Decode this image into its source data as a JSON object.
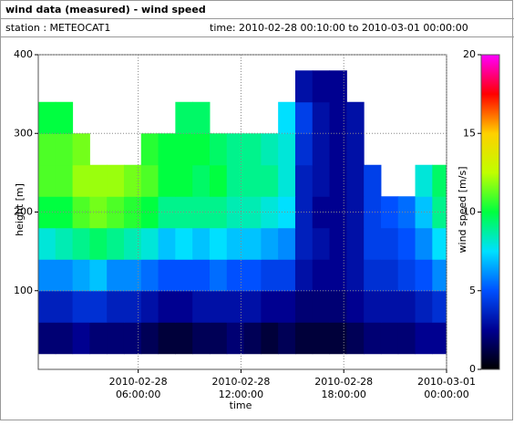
{
  "chart_data": {
    "type": "heatmap",
    "title": "wind data (measured) - wind speed",
    "station": "station : METEOCAT1",
    "time_range": "time: 2010-02-28 00:10:00 to 2010-03-01 00:00:00",
    "x_label": "time",
    "y_label": "height [m]",
    "colorbar_label": "wind speed [m/s]",
    "x": [
      "2010-02-28 00:10:00",
      "2010-02-28 01:10:00",
      "2010-02-28 02:10:00",
      "2010-02-28 03:10:00",
      "2010-02-28 04:10:00",
      "2010-02-28 05:10:00",
      "2010-02-28 06:10:00",
      "2010-02-28 07:10:00",
      "2010-02-28 08:10:00",
      "2010-02-28 09:10:00",
      "2010-02-28 10:10:00",
      "2010-02-28 11:10:00",
      "2010-02-28 12:10:00",
      "2010-02-28 13:10:00",
      "2010-02-28 14:10:00",
      "2010-02-28 15:10:00",
      "2010-02-28 16:10:00",
      "2010-02-28 17:10:00",
      "2010-02-28 18:10:00",
      "2010-02-28 19:10:00",
      "2010-02-28 20:10:00",
      "2010-02-28 21:10:00",
      "2010-02-28 22:10:00",
      "2010-02-28 23:10:00"
    ],
    "y": [
      40,
      80,
      120,
      160,
      200,
      240,
      280,
      320,
      360
    ],
    "z": [
      [
        2,
        2,
        2.5,
        2,
        2,
        2,
        1.5,
        1,
        1,
        1.5,
        1.5,
        2,
        1.5,
        1,
        1.5,
        1,
        1,
        1,
        1.5,
        2,
        2,
        2,
        2.5,
        2.5
      ],
      [
        3.5,
        3.5,
        4,
        4,
        3.5,
        3.5,
        3,
        2.5,
        2.5,
        3,
        3,
        3,
        3,
        2.5,
        2.5,
        2,
        2,
        2,
        2.5,
        3,
        3,
        3,
        3.5,
        4
      ],
      [
        6,
        6,
        6.5,
        7,
        6,
        6,
        5.5,
        5,
        5,
        5,
        5.5,
        5,
        5,
        4.5,
        4.5,
        3,
        2.5,
        2.5,
        3,
        4,
        4,
        4.5,
        5,
        6
      ],
      [
        8,
        8.5,
        9,
        9.5,
        9,
        8.5,
        8,
        7,
        7.5,
        7,
        7.5,
        7,
        7,
        6.5,
        6,
        3.5,
        3,
        2.5,
        3,
        4.5,
        4.5,
        5,
        6,
        7.5
      ],
      [
        10,
        10,
        11,
        11.5,
        11,
        10.5,
        10,
        9,
        9,
        9,
        9,
        8.5,
        8.5,
        8,
        7.5,
        3.5,
        2.5,
        2.5,
        3,
        4.5,
        5,
        5.5,
        7,
        9
      ],
      [
        11,
        11,
        12,
        12,
        12,
        11.5,
        11,
        10,
        10,
        9.5,
        10,
        9,
        9,
        9,
        8,
        3.5,
        3,
        2.5,
        3,
        4.5,
        null,
        null,
        8,
        9.5
      ],
      [
        11,
        11,
        11.5,
        null,
        null,
        null,
        10.5,
        10,
        10,
        10,
        9.5,
        9,
        9,
        8.5,
        8,
        4,
        3,
        2.5,
        3,
        null,
        null,
        null,
        null,
        null
      ],
      [
        10,
        10,
        null,
        null,
        null,
        null,
        null,
        null,
        9.5,
        9.5,
        null,
        null,
        null,
        null,
        7.5,
        4.5,
        3,
        2.5,
        3,
        null,
        null,
        null,
        null,
        null
      ],
      [
        null,
        null,
        null,
        null,
        null,
        null,
        null,
        null,
        null,
        null,
        null,
        null,
        null,
        null,
        null,
        3,
        2.5,
        2.5,
        null,
        null,
        null,
        null,
        null,
        null
      ]
    ],
    "xlim": [
      "2010-02-28 00:10:00",
      "2010-03-01 00:00:00"
    ],
    "xticks": [
      {
        "value": "2010-02-28 06:00:00",
        "label": "2010-02-28 06:00:00"
      },
      {
        "value": "2010-02-28 12:00:00",
        "label": "2010-02-28 12:00:00"
      },
      {
        "value": "2010-02-28 18:00:00",
        "label": "2010-02-28 18:00:00"
      },
      {
        "value": "2010-03-01 00:00:00",
        "label": "2010-03-01 00:00:00"
      }
    ],
    "ylim": [
      0,
      400
    ],
    "yticks": [
      100,
      200,
      300,
      400
    ],
    "zlim": [
      0,
      20
    ],
    "zticks": [
      0,
      5,
      10,
      15,
      20
    ],
    "colormap": [
      "#000000",
      "#000090",
      "#0050ff",
      "#00e0ff",
      "#00ff40",
      "#c0ff00",
      "#ffd000",
      "#ff0000",
      "#ff00ff"
    ],
    "grid": true
  }
}
